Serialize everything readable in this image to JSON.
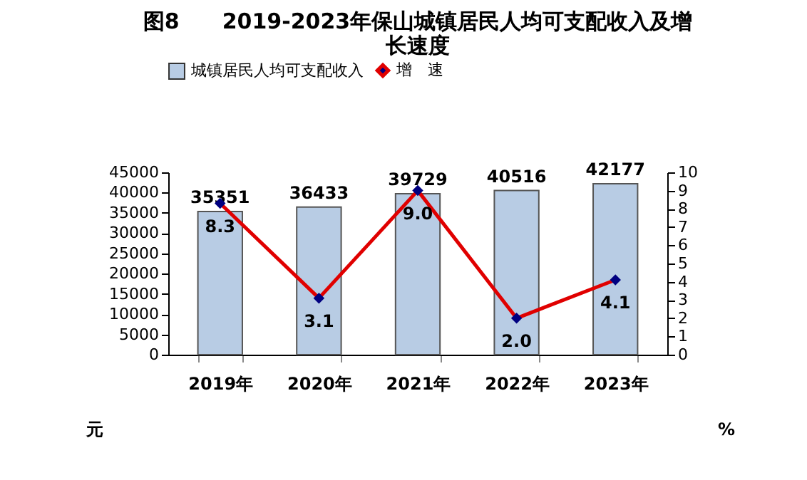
{
  "chart_data": {
    "type": "bar",
    "title": "图8　　2019-2023年保山城镇居民人均可支配收入及增长速度",
    "ylabel": "元",
    "y2label": "%",
    "categories": [
      "2019年",
      "2020年",
      "2021年",
      "2022年",
      "2023年"
    ],
    "series": [
      {
        "name": "城镇居民人均可支配收入",
        "color": "#b8cce4",
        "values": [
          35351,
          36433,
          39729,
          40516,
          42177
        ]
      },
      {
        "name": "增　速",
        "type": "line",
        "axis": "y2",
        "color": "#e00000",
        "marker": "diamond",
        "values": [
          8.3,
          3.1,
          9.0,
          2.0,
          4.1
        ],
        "value_labels": [
          "8.3",
          "3.1",
          "9.0",
          "2.0",
          "4.1"
        ]
      }
    ],
    "ylim": [
      0,
      45000
    ],
    "yticks": [
      0,
      5000,
      10000,
      15000,
      20000,
      25000,
      30000,
      35000,
      40000,
      45000
    ],
    "y2lim": [
      0,
      10
    ],
    "y2ticks": [
      0,
      1,
      2,
      3,
      4,
      5,
      6,
      7,
      8,
      9,
      10
    ],
    "data_labels": true,
    "legend": "top"
  }
}
